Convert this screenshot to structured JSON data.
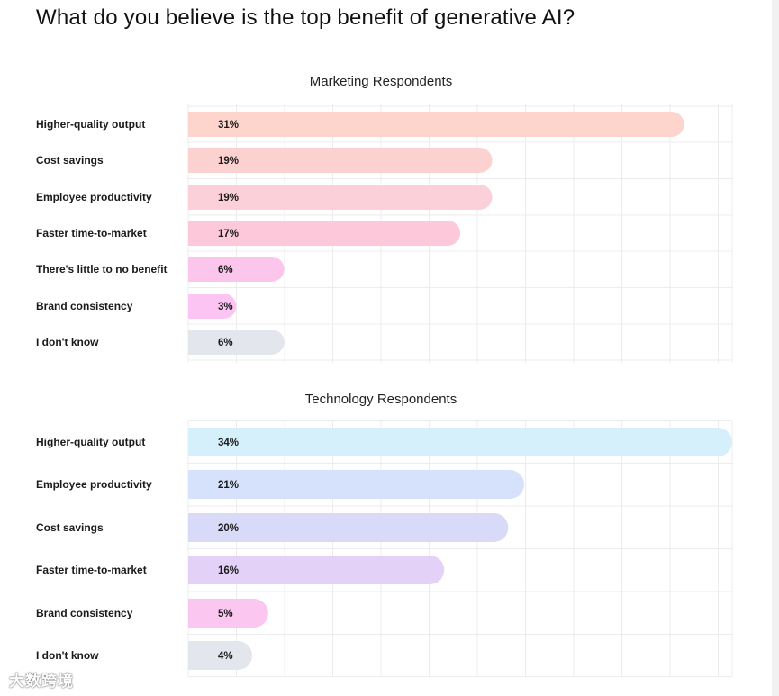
{
  "title": "What do you believe is the top benefit of generative AI?",
  "watermark": "大数跨境",
  "chart_data": [
    {
      "type": "bar",
      "orientation": "horizontal",
      "title": "Marketing Respondents",
      "categories": [
        "Higher-quality output",
        "Cost savings",
        "Employee productivity",
        "Faster time-to-market",
        "There's little to no benefit",
        "Brand consistency",
        "I don't know"
      ],
      "values": [
        31,
        19,
        19,
        17,
        6,
        3,
        6
      ],
      "value_labels": [
        "31%",
        "19%",
        "19%",
        "17%",
        "6%",
        "3%",
        "6%"
      ],
      "unit": "%",
      "xlim": [
        0,
        34
      ],
      "grid": true,
      "colors": [
        "#fdd5cc",
        "#fcd2d1",
        "#fcd0d8",
        "#fcc8da",
        "#fcc5ec",
        "#fbc4f2",
        "#e3e6ec"
      ]
    },
    {
      "type": "bar",
      "orientation": "horizontal",
      "title": "Technology Respondents",
      "categories": [
        "Higher-quality output",
        "Employee productivity",
        "Cost savings",
        "Faster time-to-market",
        "Brand consistency",
        "I don't know"
      ],
      "values": [
        34,
        21,
        20,
        16,
        5,
        4
      ],
      "value_labels": [
        "34%",
        "21%",
        "20%",
        "16%",
        "5%",
        "4%"
      ],
      "unit": "%",
      "xlim": [
        0,
        34
      ],
      "grid": true,
      "colors": [
        "#d6f0fb",
        "#d6e2fb",
        "#d9d9f8",
        "#e3d1f7",
        "#fbc7f0",
        "#e3e6ec"
      ]
    }
  ]
}
